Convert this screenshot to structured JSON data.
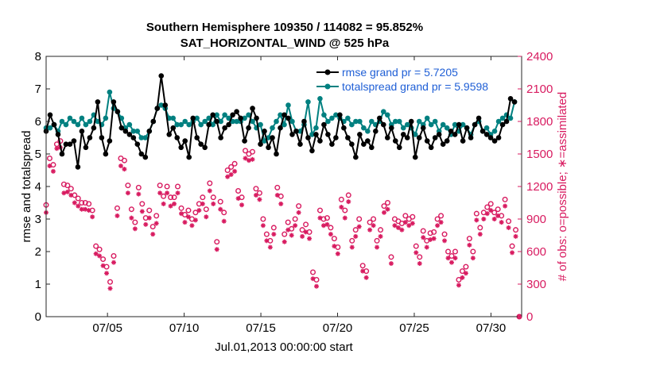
{
  "chart_data": {
    "type": "line",
    "title": "Southern Hemisphere 109350 / 114082 = 95.852%",
    "subtitle": "SAT_HORIZONTAL_WIND @ 525 hPa",
    "xlabel": "Jul.01,2013 00:00:00 start",
    "ylabel_left": "rmse and totalspread",
    "ylabel_right": "# of obs: o=possible; ∗=assimilated",
    "x_ticks": [
      "07/05",
      "07/10",
      "07/15",
      "07/20",
      "07/25",
      "07/30"
    ],
    "x_tick_days": [
      5,
      10,
      15,
      20,
      25,
      30
    ],
    "xlim_days": [
      1,
      32
    ],
    "y_left_ticks": [
      "0",
      "1",
      "2",
      "3",
      "4",
      "5",
      "6",
      "7",
      "8"
    ],
    "ylim_left": [
      0,
      8
    ],
    "y_right_ticks": [
      "0",
      "300",
      "600",
      "900",
      "1200",
      "1500",
      "1800",
      "2100",
      "2400"
    ],
    "ylim_right": [
      0,
      2400
    ],
    "legend": [
      "rmse grand pr = 5.7205",
      "totalspread grand pr = 5.9598"
    ],
    "legend_position": "top-right",
    "colors": {
      "rmse": "#000000",
      "spread": "#008080",
      "obs": "#d81b60",
      "right_axis": "#d81b60"
    },
    "series": [
      {
        "name": "rmse grand pr = 5.7205",
        "color": "#000000",
        "values": [
          5.7,
          6.2,
          5.9,
          5.6,
          5.0,
          5.3,
          5.3,
          5.4,
          4.6,
          5.7,
          5.2,
          5.5,
          5.8,
          6.6,
          5.5,
          5.0,
          5.4,
          6.6,
          6.3,
          5.8,
          5.7,
          5.6,
          5.5,
          5.3,
          5.0,
          4.9,
          5.7,
          6.0,
          6.4,
          7.4,
          6.5,
          5.6,
          5.8,
          5.5,
          5.2,
          5.4,
          4.9,
          6.1,
          5.5,
          5.3,
          5.2,
          5.9,
          6.2,
          6.0,
          5.5,
          5.8,
          5.9,
          6.2,
          6.3,
          6.1,
          5.4,
          5.8,
          6.4,
          6.1,
          5.3,
          5.7,
          5.2,
          5.5,
          5.0,
          5.8,
          6.2,
          6.1,
          5.6,
          5.7,
          5.3,
          6.0,
          5.5,
          5.1,
          5.6,
          5.4,
          5.9,
          5.6,
          5.3,
          5.5,
          6.2,
          5.8,
          5.5,
          5.3,
          4.9,
          5.6,
          5.3,
          5.4,
          5.2,
          5.7,
          6.1,
          5.9,
          5.5,
          5.8,
          5.4,
          5.2,
          5.6,
          5.5,
          6.0,
          4.9,
          5.5,
          5.8,
          5.4,
          5.2,
          5.5,
          5.6,
          5.3,
          5.4,
          5.7,
          5.6,
          5.9,
          5.4,
          5.8,
          5.5,
          5.9,
          6.1,
          5.7,
          5.6,
          5.5,
          5.4,
          5.5,
          5.9,
          6.0,
          6.7,
          6.6
        ]
      },
      {
        "name": "totalspread grand pr = 5.9598",
        "color": "#008080",
        "values": [
          5.8,
          5.8,
          5.9,
          5.7,
          6.0,
          5.9,
          6.1,
          6.0,
          5.9,
          6.1,
          5.9,
          6.0,
          6.2,
          6.0,
          5.9,
          6.1,
          6.9,
          6.4,
          6.3,
          6.1,
          5.8,
          5.9,
          5.7,
          5.7,
          5.5,
          5.5,
          5.7,
          6.0,
          6.4,
          6.5,
          6.4,
          6.1,
          6.1,
          5.9,
          5.9,
          6.0,
          5.9,
          6.0,
          6.1,
          5.9,
          6.0,
          6.1,
          5.9,
          6.2,
          6.0,
          6.2,
          6.1,
          6.0,
          6.0,
          6.0,
          6.1,
          6.2,
          6.0,
          5.8,
          5.9,
          5.4,
          5.5,
          5.8,
          6.0,
          6.2,
          5.9,
          6.5,
          6.0,
          5.7,
          5.7,
          5.9,
          6.6,
          5.6,
          5.8,
          6.7,
          6.2,
          6.0,
          6.1,
          6.2,
          6.1,
          6.0,
          6.1,
          5.9,
          6.0,
          6.0,
          5.8,
          5.7,
          6.0,
          5.9,
          6.0,
          6.3,
          6.2,
          5.9,
          6.0,
          6.0,
          5.8,
          5.9,
          5.8,
          5.6,
          6.0,
          5.9,
          6.1,
          5.9,
          6.0,
          5.7,
          5.9,
          5.8,
          5.6,
          5.9,
          5.7,
          5.9,
          5.8,
          5.6,
          5.9,
          6.0,
          5.7,
          5.8,
          5.6,
          5.7,
          6.0,
          6.1,
          6.2,
          6.1,
          6.6
        ]
      }
    ],
    "obs_possible": [
      1030,
      1460,
      1400,
      1590,
      1620,
      1220,
      1210,
      1180,
      1120,
      1090,
      1050,
      1050,
      1040,
      980,
      650,
      620,
      530,
      460,
      320,
      560,
      1000,
      1460,
      1440,
      1210,
      990,
      870,
      1190,
      1040,
      910,
      980,
      830,
      930,
      1210,
      1110,
      1200,
      1100,
      1100,
      1200,
      1000,
      940,
      980,
      900,
      960,
      1040,
      1100,
      990,
      1230,
      1100,
      690,
      1060,
      960,
      1350,
      1380,
      1410,
      1160,
      1100,
      1530,
      1500,
      1520,
      1180,
      1140,
      900,
      760,
      700,
      820,
      1190,
      1110,
      760,
      870,
      810,
      900,
      1020,
      800,
      850,
      780,
      410,
      340,
      980,
      900,
      910,
      820,
      720,
      640,
      1080,
      980,
      1120,
      700,
      800,
      900,
      470,
      420,
      870,
      900,
      700,
      800,
      1020,
      1050,
      550,
      900,
      880,
      860,
      930,
      900,
      920,
      650,
      550,
      790,
      700,
      770,
      780,
      900,
      930,
      760,
      600,
      560,
      600,
      340,
      420,
      460,
      720,
      600,
      950,
      820,
      960,
      1010,
      1040,
      960,
      990,
      930,
      1080,
      880,
      650,
      800,
      0
    ],
    "obs_assimilated": [
      960,
      1390,
      1340,
      1550,
      1560,
      1140,
      1150,
      1120,
      1050,
      1020,
      990,
      990,
      980,
      920,
      580,
      560,
      470,
      400,
      260,
      500,
      930,
      1390,
      1360,
      1140,
      910,
      810,
      1130,
      970,
      850,
      910,
      760,
      860,
      1140,
      1040,
      1140,
      1020,
      1040,
      1140,
      950,
      870,
      920,
      840,
      890,
      980,
      1040,
      920,
      1160,
      1040,
      620,
      990,
      880,
      1290,
      1310,
      1340,
      1090,
      1030,
      1460,
      1440,
      1450,
      1120,
      1080,
      840,
      700,
      640,
      760,
      1120,
      1040,
      690,
      800,
      750,
      840,
      960,
      740,
      780,
      720,
      350,
      280,
      910,
      840,
      850,
      760,
      650,
      580,
      1010,
      910,
      1060,
      640,
      740,
      830,
      420,
      360,
      800,
      840,
      640,
      740,
      960,
      990,
      490,
      840,
      820,
      800,
      870,
      840,
      860,
      590,
      490,
      730,
      640,
      710,
      720,
      840,
      870,
      700,
      540,
      500,
      540,
      290,
      360,
      400,
      660,
      540,
      890,
      760,
      900,
      950,
      980,
      900,
      930,
      870,
      1020,
      820,
      590,
      740,
      0
    ]
  }
}
